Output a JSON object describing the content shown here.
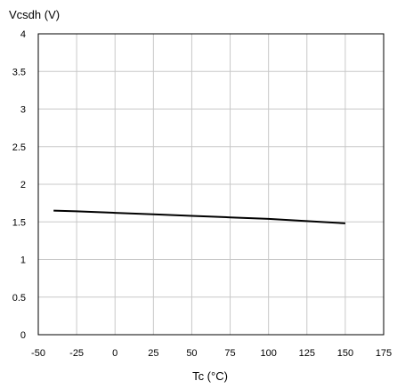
{
  "chart_data": {
    "type": "line",
    "title": "",
    "ylabel": "Vcsdh (V)",
    "xlabel": "Tc (°C)",
    "xlim": [
      -50,
      175
    ],
    "ylim": [
      0,
      4
    ],
    "xticks": [
      -50,
      -25,
      0,
      25,
      50,
      75,
      100,
      125,
      150,
      175
    ],
    "yticks": [
      0,
      0.5,
      1,
      1.5,
      2,
      2.5,
      3,
      3.5,
      4
    ],
    "xtick_labels": [
      "-50",
      "-25",
      "0",
      "25",
      "50",
      "75",
      "100",
      "125",
      "150",
      "175"
    ],
    "ytick_labels": [
      "0",
      "0.5",
      "1",
      "1.5",
      "2",
      "2.5",
      "3",
      "3.5",
      "4"
    ],
    "grid": true,
    "series": [
      {
        "x": [
          -40,
          -25,
          0,
          25,
          50,
          75,
          100,
          125,
          150
        ],
        "y": [
          1.65,
          1.64,
          1.62,
          1.6,
          1.58,
          1.56,
          1.54,
          1.51,
          1.48
        ]
      }
    ],
    "colors": {
      "line": "#000000",
      "grid": "#c8c8c8",
      "frame": "#000000"
    }
  }
}
